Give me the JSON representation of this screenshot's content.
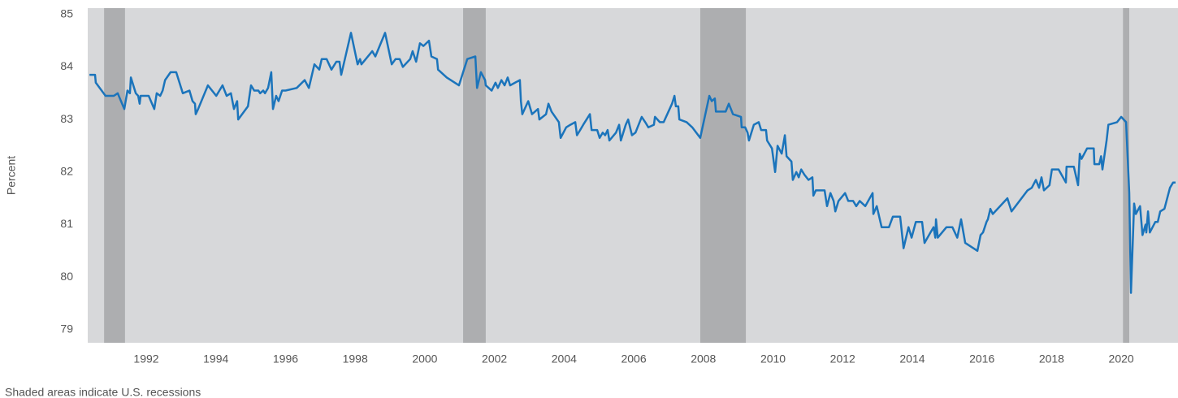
{
  "chart_data": {
    "type": "line",
    "ylabel": "Percent",
    "note": "Shaded areas indicate U.S. recessions",
    "color": "#1b74bb",
    "background": "#d7d8da",
    "recession_color": "#adaeb0",
    "recessions": [
      [
        1990.79,
        1991.39
      ],
      [
        2001.1,
        2001.75
      ],
      [
        2007.91,
        2009.22
      ],
      [
        2020.05,
        2020.23
      ]
    ],
    "xlim": [
      1990.32,
      2021.63
    ],
    "ylim": [
      78.75,
      85.12
    ],
    "xticks": [
      1992,
      1994,
      1996,
      1998,
      2000,
      2002,
      2004,
      2006,
      2008,
      2010,
      2012,
      2014,
      2016,
      2018,
      2020
    ],
    "yticks": [
      79,
      80,
      81,
      82,
      83,
      84,
      85
    ],
    "grid": false,
    "x": [
      1990.37,
      1990.53,
      1990.55,
      1990.72,
      1990.83,
      1991.07,
      1991.18,
      1991.37,
      1991.46,
      1991.53,
      1991.56,
      1991.7,
      1991.77,
      1991.81,
      1991.84,
      1992.07,
      1992.23,
      1992.3,
      1992.4,
      1992.47,
      1992.54,
      1992.7,
      1992.86,
      1993.05,
      1993.24,
      1993.33,
      1993.4,
      1993.42,
      1993.49,
      1993.77,
      1994.01,
      1994.19,
      1994.31,
      1994.43,
      1994.52,
      1994.61,
      1994.64,
      1994.92,
      1995.01,
      1995.1,
      1995.22,
      1995.27,
      1995.36,
      1995.41,
      1995.5,
      1995.59,
      1995.64,
      1995.73,
      1995.8,
      1995.9,
      1996.0,
      1996.32,
      1996.55,
      1996.67,
      1996.83,
      1996.97,
      1997.04,
      1997.18,
      1997.32,
      1997.46,
      1997.55,
      1997.6,
      1997.88,
      1998.07,
      1998.14,
      1998.18,
      1998.49,
      1998.58,
      1998.86,
      1999.05,
      1999.16,
      1999.28,
      1999.37,
      1999.58,
      1999.65,
      1999.75,
      1999.86,
      1999.96,
      2000.12,
      2000.19,
      2000.35,
      2000.38,
      2000.63,
      2000.98,
      2001.22,
      2001.45,
      2001.5,
      2001.61,
      2001.73,
      2001.75,
      2001.92,
      2002.03,
      2002.1,
      2002.2,
      2002.29,
      2002.38,
      2002.45,
      2002.73,
      2002.76,
      2002.8,
      2002.97,
      2003.08,
      2003.25,
      2003.29,
      2003.48,
      2003.55,
      2003.64,
      2003.85,
      2003.9,
      2004.06,
      2004.18,
      2004.32,
      2004.37,
      2004.46,
      2004.55,
      2004.74,
      2004.79,
      2004.95,
      2005.02,
      2005.11,
      2005.18,
      2005.25,
      2005.3,
      2005.49,
      2005.58,
      2005.63,
      2005.77,
      2005.84,
      2005.95,
      2006.05,
      2006.23,
      2006.33,
      2006.42,
      2006.58,
      2006.61,
      2006.75,
      2006.86,
      2007.1,
      2007.17,
      2007.21,
      2007.28,
      2007.31,
      2007.52,
      2007.68,
      2007.91,
      2008.17,
      2008.24,
      2008.33,
      2008.36,
      2008.64,
      2008.73,
      2008.85,
      2009.08,
      2009.1,
      2009.2,
      2009.27,
      2009.31,
      2009.45,
      2009.59,
      2009.66,
      2009.8,
      2009.83,
      2009.97,
      2010.06,
      2010.13,
      2010.25,
      2010.34,
      2010.39,
      2010.53,
      2010.57,
      2010.67,
      2010.74,
      2010.81,
      2010.9,
      2011.02,
      2011.13,
      2011.16,
      2011.23,
      2011.48,
      2011.55,
      2011.65,
      2011.74,
      2011.79,
      2011.88,
      2012.07,
      2012.16,
      2012.3,
      2012.39,
      2012.49,
      2012.65,
      2012.86,
      2012.88,
      2012.98,
      2013.12,
      2013.33,
      2013.44,
      2013.65,
      2013.75,
      2013.89,
      2013.98,
      2014.1,
      2014.28,
      2014.35,
      2014.52,
      2014.61,
      2014.66,
      2014.68,
      2014.73,
      2014.98,
      2015.15,
      2015.29,
      2015.4,
      2015.52,
      2015.87,
      2015.96,
      2016.03,
      2016.13,
      2016.17,
      2016.24,
      2016.31,
      2016.73,
      2016.85,
      2017.31,
      2017.43,
      2017.55,
      2017.64,
      2017.71,
      2017.78,
      2017.94,
      2018.01,
      2018.2,
      2018.41,
      2018.43,
      2018.64,
      2018.76,
      2018.81,
      2018.86,
      2019.02,
      2019.21,
      2019.23,
      2019.37,
      2019.42,
      2019.46,
      2019.58,
      2019.63,
      2019.88,
      2020.0,
      2020.14,
      2020.23,
      2020.28,
      2020.37,
      2020.42,
      2020.54,
      2020.61,
      2020.7,
      2020.72,
      2020.77,
      2020.82,
      2020.98,
      2021.05,
      2021.12,
      2021.24,
      2021.4,
      2021.49,
      2021.56
    ],
    "values": [
      83.85,
      83.85,
      83.7,
      83.55,
      83.45,
      83.45,
      83.5,
      83.2,
      83.55,
      83.5,
      83.8,
      83.5,
      83.45,
      83.3,
      83.45,
      83.45,
      83.2,
      83.5,
      83.45,
      83.55,
      83.75,
      83.9,
      83.9,
      83.5,
      83.55,
      83.35,
      83.3,
      83.1,
      83.2,
      83.65,
      83.45,
      83.65,
      83.45,
      83.5,
      83.2,
      83.35,
      83.0,
      83.25,
      83.65,
      83.55,
      83.55,
      83.5,
      83.55,
      83.5,
      83.6,
      83.9,
      83.2,
      83.45,
      83.35,
      83.55,
      83.55,
      83.6,
      83.75,
      83.6,
      84.05,
      83.95,
      84.15,
      84.15,
      83.95,
      84.1,
      84.1,
      83.85,
      84.65,
      84.05,
      84.15,
      84.05,
      84.3,
      84.2,
      84.65,
      84.05,
      84.15,
      84.15,
      84.0,
      84.15,
      84.3,
      84.1,
      84.45,
      84.4,
      84.5,
      84.2,
      84.15,
      83.95,
      83.8,
      83.65,
      84.15,
      84.2,
      83.6,
      83.9,
      83.75,
      83.65,
      83.55,
      83.7,
      83.6,
      83.75,
      83.65,
      83.8,
      83.65,
      83.75,
      83.35,
      83.1,
      83.35,
      83.1,
      83.2,
      83.0,
      83.1,
      83.3,
      83.15,
      82.95,
      82.65,
      82.85,
      82.9,
      82.95,
      82.7,
      82.8,
      82.9,
      83.1,
      82.8,
      82.8,
      82.65,
      82.75,
      82.7,
      82.8,
      82.6,
      82.75,
      82.9,
      82.6,
      82.9,
      83.0,
      82.7,
      82.75,
      83.05,
      82.95,
      82.85,
      82.9,
      83.05,
      82.95,
      82.95,
      83.3,
      83.45,
      83.25,
      83.25,
      83.0,
      82.95,
      82.85,
      82.65,
      83.45,
      83.35,
      83.4,
      83.15,
      83.15,
      83.3,
      83.1,
      83.05,
      82.85,
      82.85,
      82.75,
      82.6,
      82.9,
      82.95,
      82.8,
      82.8,
      82.6,
      82.45,
      82.0,
      82.5,
      82.35,
      82.7,
      82.3,
      82.2,
      81.85,
      82.0,
      81.9,
      82.05,
      81.95,
      81.85,
      81.9,
      81.55,
      81.65,
      81.65,
      81.35,
      81.6,
      81.45,
      81.25,
      81.45,
      81.6,
      81.45,
      81.45,
      81.35,
      81.45,
      81.35,
      81.6,
      81.2,
      81.35,
      80.95,
      80.95,
      81.15,
      81.15,
      80.55,
      80.95,
      80.75,
      81.05,
      81.05,
      80.65,
      80.85,
      80.95,
      80.75,
      81.1,
      80.75,
      80.95,
      80.95,
      80.75,
      81.1,
      80.65,
      80.5,
      80.8,
      80.85,
      81.05,
      81.1,
      81.3,
      81.2,
      81.5,
      81.25,
      81.65,
      81.7,
      81.85,
      81.7,
      81.9,
      81.65,
      81.75,
      82.05,
      82.05,
      81.8,
      82.1,
      82.1,
      81.75,
      82.35,
      82.25,
      82.45,
      82.45,
      82.15,
      82.15,
      82.3,
      82.05,
      82.6,
      82.9,
      82.95,
      83.05,
      82.95,
      81.6,
      79.7,
      81.4,
      81.2,
      81.35,
      80.8,
      81.0,
      80.85,
      81.25,
      80.85,
      81.05,
      81.05,
      81.25,
      81.3,
      81.7,
      81.8,
      81.8
    ]
  }
}
